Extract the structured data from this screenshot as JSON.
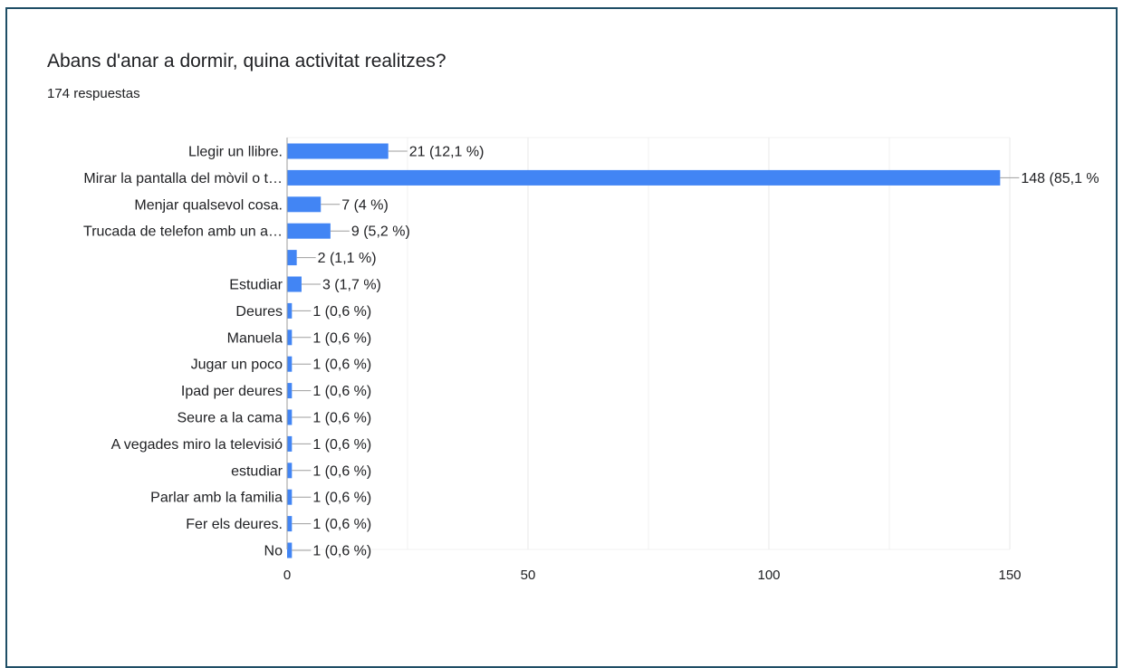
{
  "question": {
    "title": "Abans d'anar a dormir, quina activitat realitzes?",
    "responses": "174 respuestas"
  },
  "colors": {
    "bar": "#4285f4",
    "grid": "#e8e8e8",
    "axis": "#9e9e9e",
    "text": "#202124",
    "leader": "#9e9e9e",
    "border": "#1f4e66"
  },
  "chart_data": {
    "type": "bar",
    "orientation": "horizontal",
    "categories": [
      "Llegir un llibre.",
      "Mirar la pantalla del mòvil o t…",
      "Menjar qualsevol cosa.",
      "Trucada de telefon amb un a…",
      "",
      "Estudiar",
      "Deures",
      "Manuela",
      "Jugar un poco",
      "Ipad per deures",
      "Seure a la cama",
      "A vegades miro la televisió",
      "estudiar",
      "Parlar amb la familia",
      "Fer els deures.",
      "No"
    ],
    "values": [
      21,
      148,
      7,
      9,
      2,
      3,
      1,
      1,
      1,
      1,
      1,
      1,
      1,
      1,
      1,
      1
    ],
    "data_labels": [
      "21 (12,1 %)",
      "148 (85,1 %",
      "7 (4 %)",
      "9 (5,2 %)",
      "2 (1,1 %)",
      "3 (1,7 %)",
      "1 (0,6 %)",
      "1 (0,6 %)",
      "1 (0,6 %)",
      "1 (0,6 %)",
      "1 (0,6 %)",
      "1 (0,6 %)",
      "1 (0,6 %)",
      "1 (0,6 %)",
      "1 (0,6 %)",
      "1 (0,6 %)"
    ],
    "xlim": [
      0,
      150
    ],
    "xticks": [
      0,
      50,
      100,
      150
    ],
    "xtick_labels": [
      "0",
      "50",
      "100",
      "150"
    ],
    "grid": true
  }
}
